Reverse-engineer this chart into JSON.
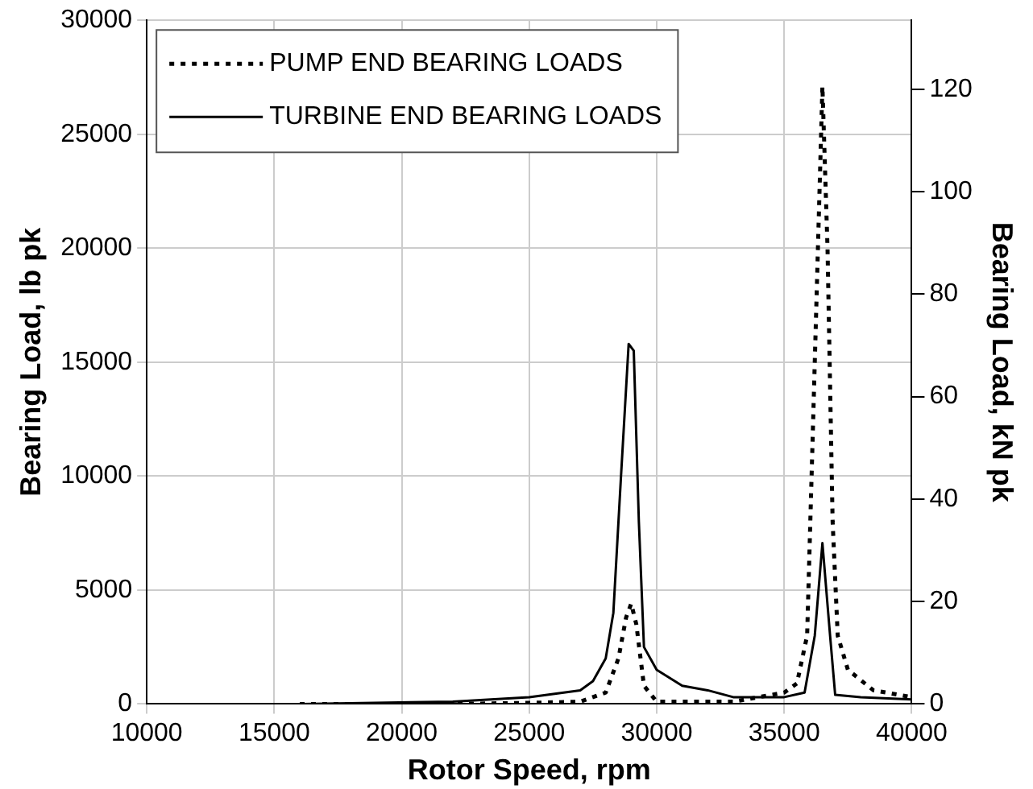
{
  "chart_data": {
    "type": "line",
    "xlabel": "Rotor Speed, rpm",
    "ylabel": "Bearing Load, lb pk",
    "y2label": "Bearing Load, kN pk",
    "xlim": [
      10000,
      40000
    ],
    "xticks": [
      10000,
      15000,
      20000,
      25000,
      30000,
      35000,
      40000
    ],
    "ylim": [
      0,
      30000
    ],
    "yticks": [
      0,
      5000,
      10000,
      15000,
      20000,
      25000,
      30000
    ],
    "y2lim": [
      0,
      133.45
    ],
    "y2ticks": [
      0,
      20,
      40,
      60,
      80,
      100,
      120
    ],
    "grid": true,
    "legend": "top left",
    "marker": "none",
    "series": [
      {
        "name": "PUMP END BEARING LOADS",
        "color": "#000000",
        "line_style": "dotted",
        "x": [
          16000,
          22000,
          25000,
          27000,
          28000,
          28500,
          28800,
          29000,
          29200,
          29500,
          30000,
          33000,
          34000,
          35000,
          35500,
          35900,
          36200,
          36500,
          36700,
          36900,
          37100,
          37500,
          38500,
          40000
        ],
        "values": [
          0,
          0,
          50,
          100,
          500,
          2000,
          3800,
          4400,
          3500,
          800,
          100,
          100,
          300,
          500,
          900,
          3000,
          15000,
          27100,
          20000,
          8000,
          3000,
          1500,
          600,
          300
        ]
      },
      {
        "name": "TURBINE END BEARING LOADS",
        "color": "#000000",
        "line_style": "solid",
        "x": [
          16000,
          22000,
          25000,
          27000,
          27500,
          28000,
          28300,
          28600,
          28900,
          29100,
          29300,
          29500,
          30000,
          31000,
          32000,
          33000,
          35000,
          35800,
          36200,
          36500,
          36800,
          37000,
          38000,
          40000
        ],
        "values": [
          0,
          100,
          300,
          600,
          1000,
          2000,
          4000,
          10000,
          15800,
          15500,
          8000,
          2500,
          1500,
          800,
          600,
          300,
          300,
          500,
          3000,
          7060,
          3000,
          400,
          300,
          200
        ]
      }
    ]
  }
}
